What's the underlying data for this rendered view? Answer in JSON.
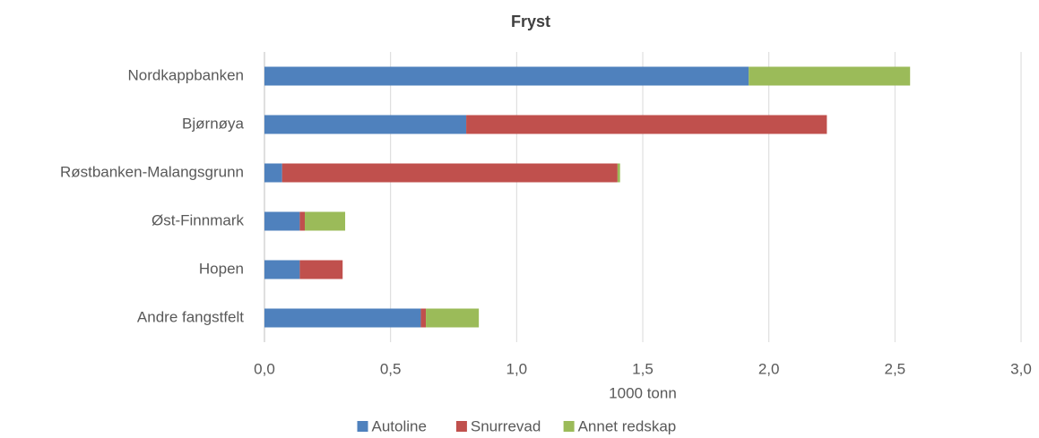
{
  "chart_data": {
    "type": "stacked_barh",
    "title": "Fryst",
    "x_label": "1000 tonn",
    "categories": [
      "Nordkappbanken",
      "Bjørnøya",
      "Røstbanken-Malangsgrunn",
      "Øst-Finnmark",
      "Hopen",
      "Andre fangstfelt"
    ],
    "series": [
      {
        "name": "Autoline",
        "color": "#4f81bd",
        "values": [
          1.92,
          0.8,
          0.07,
          0.14,
          0.14,
          0.62
        ]
      },
      {
        "name": "Snurrevad",
        "color": "#c0504d",
        "values": [
          0,
          1.43,
          1.33,
          0.02,
          0.17,
          0.02
        ]
      },
      {
        "name": "Annet redskap",
        "color": "#9bbb59",
        "values": [
          0.64,
          0,
          0.01,
          0.16,
          0,
          0.21
        ]
      }
    ],
    "xlim": [
      0,
      3
    ],
    "xticks": [
      {
        "value": 0,
        "label": "0,0"
      },
      {
        "value": 0.5,
        "label": "0,5"
      },
      {
        "value": 1,
        "label": "1,0"
      },
      {
        "value": 1.5,
        "label": "1,5"
      },
      {
        "value": 2,
        "label": "2,0"
      },
      {
        "value": 2.5,
        "label": "2,5"
      },
      {
        "value": 3,
        "label": "3,0"
      }
    ],
    "grid": true,
    "legend": "bottom"
  }
}
